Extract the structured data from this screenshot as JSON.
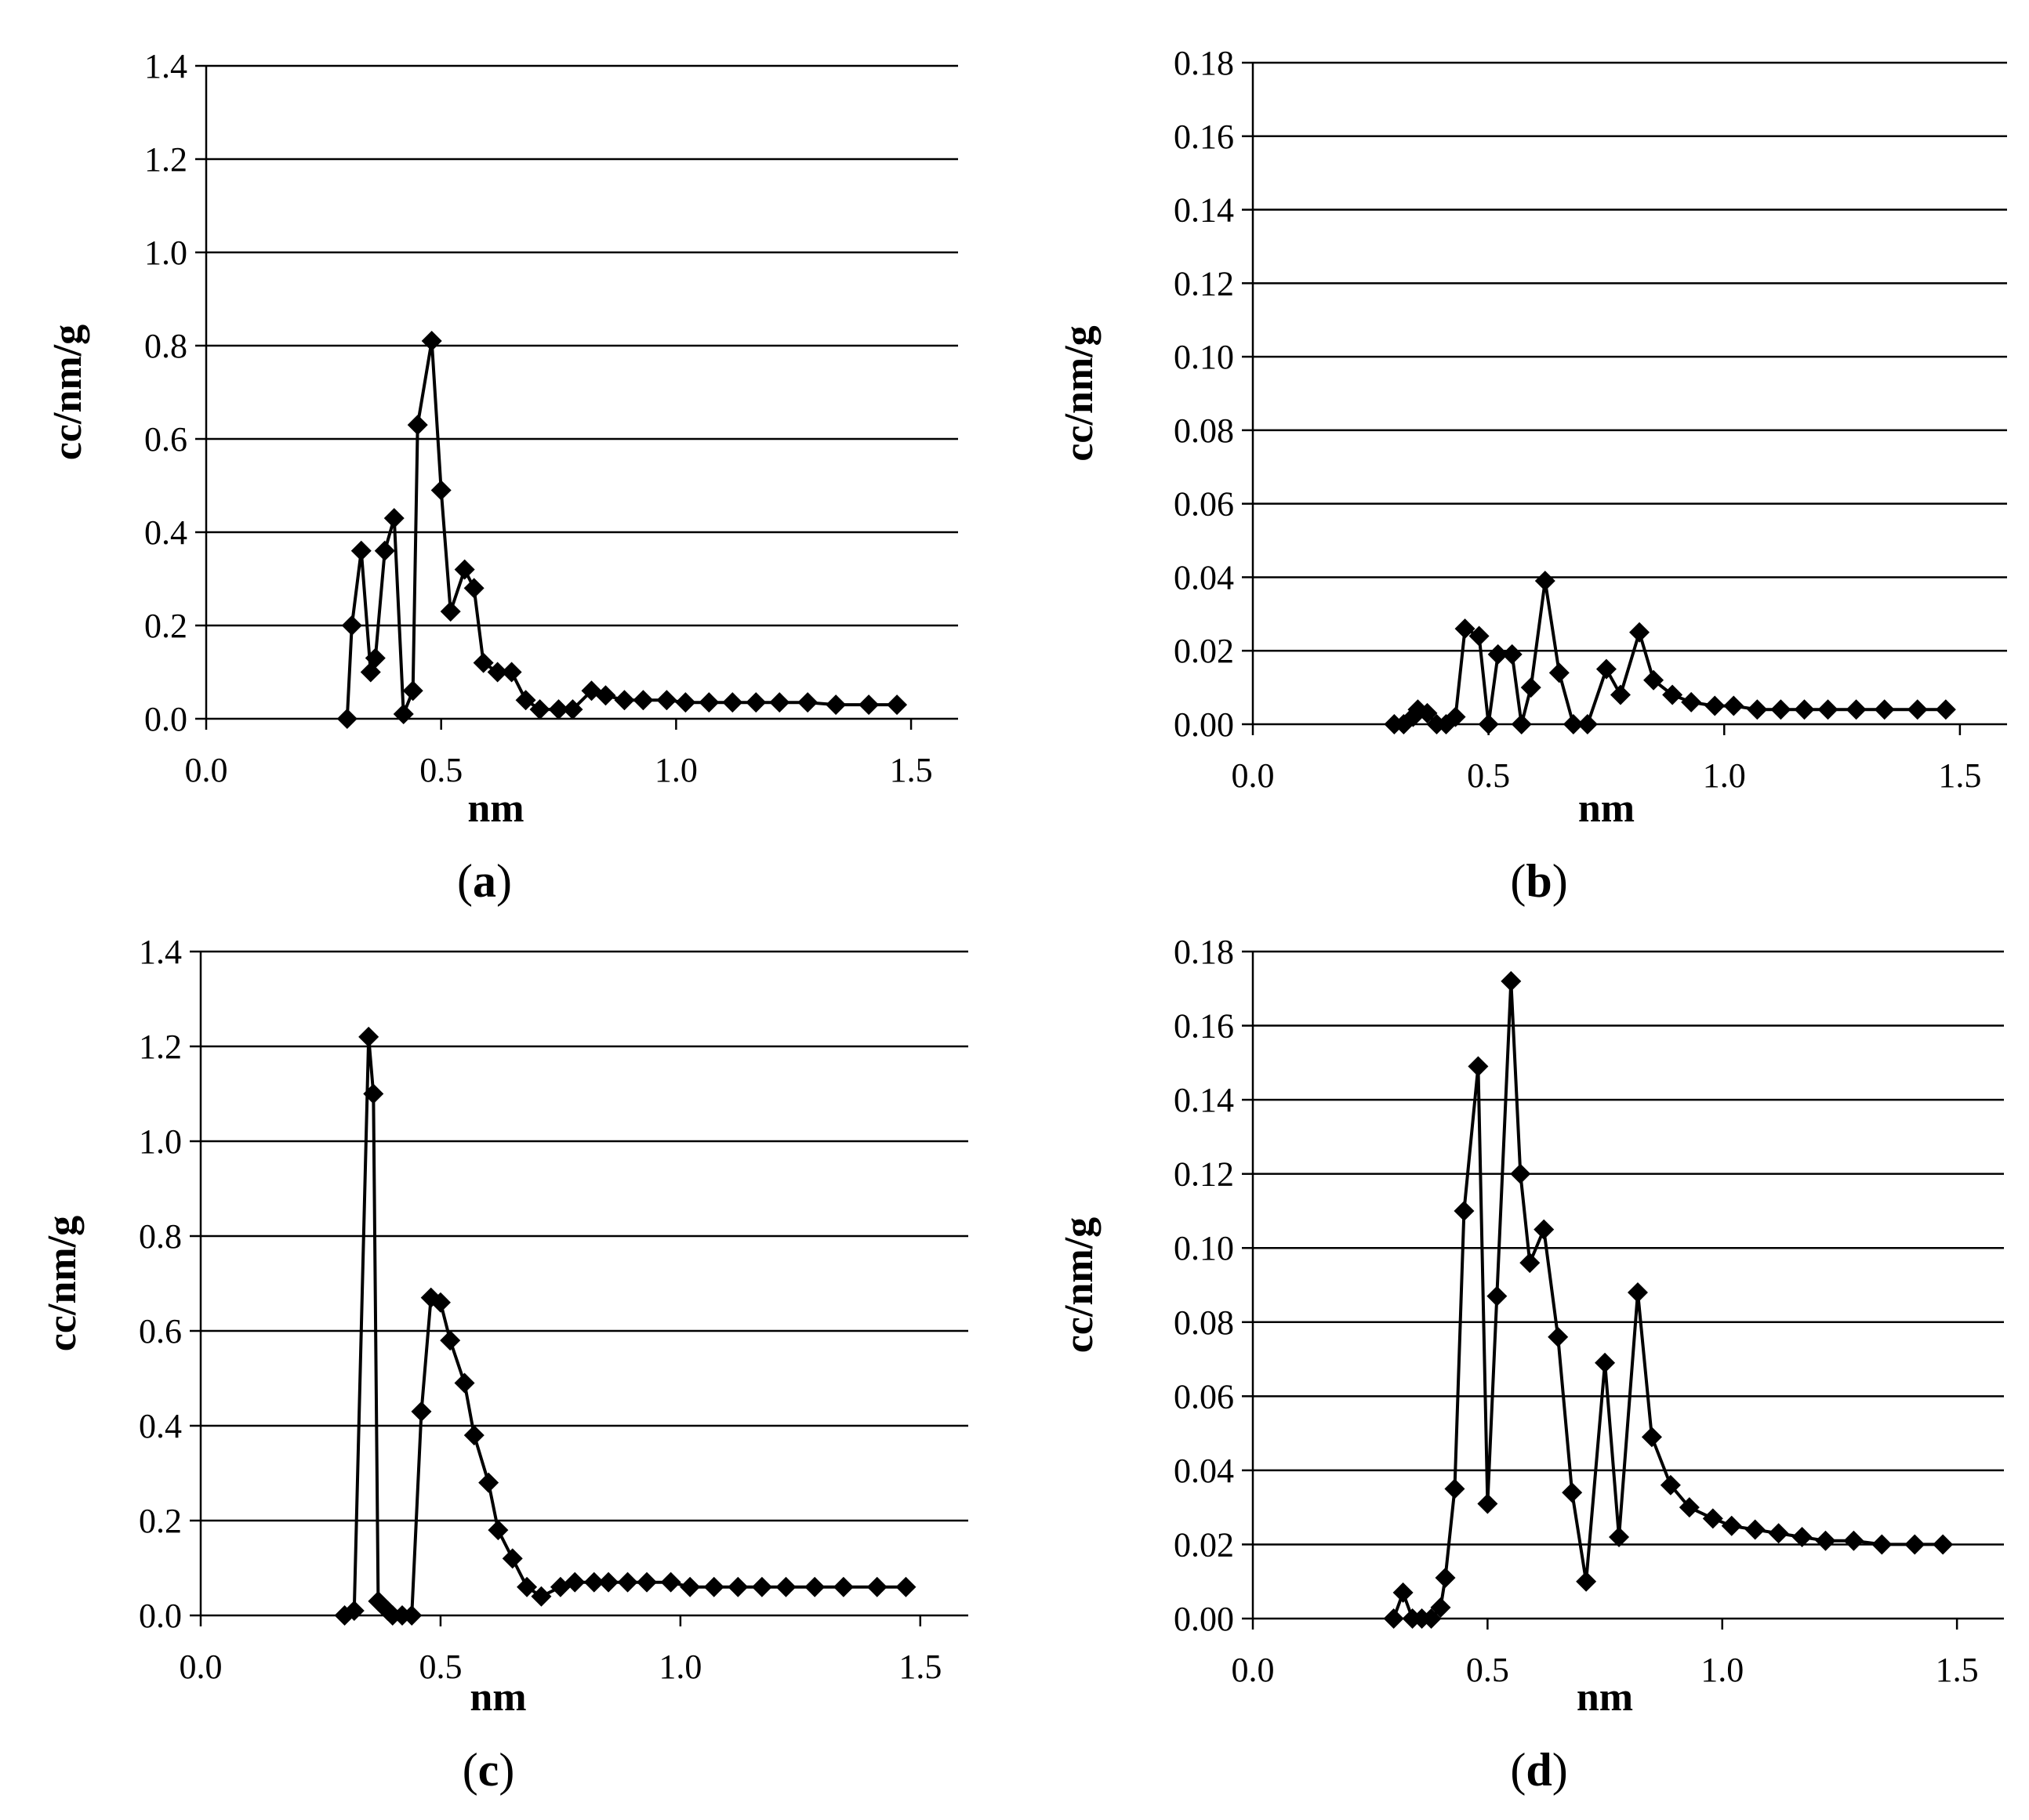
{
  "figure": {
    "panels": [
      "a",
      "b",
      "c",
      "d"
    ]
  },
  "chart_data": [
    {
      "type": "line",
      "panel": "a",
      "caption_open": "(",
      "caption_letter": "a",
      "caption_close": ")",
      "xlabel": "nm",
      "ylabel": "cc/nm/g",
      "xlim": [
        0.0,
        1.6
      ],
      "ylim": [
        0.0,
        1.4
      ],
      "xticks": [
        "0.0",
        "0.5",
        "1.0",
        "1.5"
      ],
      "yticks": [
        "0.0",
        "0.2",
        "0.4",
        "0.6",
        "0.8",
        "1.0",
        "1.2",
        "1.4"
      ],
      "grid": "horizontal",
      "marker": "diamond",
      "series": [
        {
          "name": "",
          "x": [
            0.3,
            0.31,
            0.33,
            0.35,
            0.36,
            0.38,
            0.4,
            0.42,
            0.44,
            0.45,
            0.48,
            0.5,
            0.52,
            0.55,
            0.57,
            0.59,
            0.62,
            0.65,
            0.68,
            0.71,
            0.75,
            0.78,
            0.82,
            0.85,
            0.89,
            0.93,
            0.98,
            1.02,
            1.07,
            1.12,
            1.17,
            1.22,
            1.28,
            1.34,
            1.41,
            1.47
          ],
          "y": [
            0.0,
            0.2,
            0.36,
            0.1,
            0.13,
            0.36,
            0.43,
            0.01,
            0.06,
            0.63,
            0.81,
            0.49,
            0.23,
            0.32,
            0.28,
            0.12,
            0.1,
            0.1,
            0.04,
            0.02,
            0.02,
            0.02,
            0.06,
            0.05,
            0.04,
            0.04,
            0.04,
            0.035,
            0.035,
            0.035,
            0.035,
            0.035,
            0.035,
            0.03,
            0.03,
            0.03
          ]
        }
      ]
    },
    {
      "type": "line",
      "panel": "b",
      "caption_open": "(",
      "caption_letter": "b",
      "caption_close": ")",
      "xlabel": "nm",
      "ylabel": "cc/nm/g",
      "xlim": [
        0.0,
        1.6
      ],
      "ylim": [
        0.0,
        0.18
      ],
      "xticks": [
        "0.0",
        "0.5",
        "1.0",
        "1.5"
      ],
      "yticks": [
        "0.00",
        "0.02",
        "0.04",
        "0.06",
        "0.08",
        "0.10",
        "0.12",
        "0.14",
        "0.16",
        "0.18"
      ],
      "grid": "horizontal",
      "marker": "diamond",
      "series": [
        {
          "name": "",
          "x": [
            0.3,
            0.32,
            0.34,
            0.35,
            0.37,
            0.39,
            0.41,
            0.43,
            0.45,
            0.48,
            0.5,
            0.52,
            0.55,
            0.57,
            0.59,
            0.62,
            0.65,
            0.68,
            0.71,
            0.75,
            0.78,
            0.82,
            0.85,
            0.89,
            0.93,
            0.98,
            1.02,
            1.07,
            1.12,
            1.17,
            1.22,
            1.28,
            1.34,
            1.41,
            1.47
          ],
          "y": [
            0.0,
            0.0,
            0.002,
            0.004,
            0.003,
            0.0,
            0.0,
            0.002,
            0.026,
            0.024,
            0.0,
            0.019,
            0.019,
            0.0,
            0.01,
            0.039,
            0.014,
            0.0,
            0.0,
            0.015,
            0.008,
            0.025,
            0.012,
            0.008,
            0.006,
            0.005,
            0.005,
            0.004,
            0.004,
            0.004,
            0.004,
            0.004,
            0.004,
            0.004,
            0.004
          ]
        }
      ]
    },
    {
      "type": "line",
      "panel": "c",
      "caption_open": "(",
      "caption_letter": "c",
      "caption_close": ")",
      "xlabel": "nm",
      "ylabel": "cc/nm/g",
      "xlim": [
        0.0,
        1.6
      ],
      "ylim": [
        0.0,
        1.4
      ],
      "xticks": [
        "0.0",
        "0.5",
        "1.0",
        "1.5"
      ],
      "yticks": [
        "0.0",
        "0.2",
        "0.4",
        "0.6",
        "0.8",
        "1.0",
        "1.2",
        "1.4"
      ],
      "grid": "horizontal",
      "marker": "diamond",
      "series": [
        {
          "name": "",
          "x": [
            0.3,
            0.32,
            0.35,
            0.36,
            0.37,
            0.39,
            0.4,
            0.42,
            0.44,
            0.46,
            0.48,
            0.5,
            0.52,
            0.55,
            0.57,
            0.6,
            0.62,
            0.65,
            0.68,
            0.71,
            0.75,
            0.78,
            0.82,
            0.85,
            0.89,
            0.93,
            0.98,
            1.02,
            1.07,
            1.12,
            1.17,
            1.22,
            1.28,
            1.34,
            1.41,
            1.47
          ],
          "y": [
            0.0,
            0.01,
            1.22,
            1.1,
            0.03,
            0.01,
            0.0,
            0.0,
            0.0,
            0.43,
            0.67,
            0.66,
            0.58,
            0.49,
            0.38,
            0.28,
            0.18,
            0.12,
            0.06,
            0.04,
            0.06,
            0.07,
            0.07,
            0.07,
            0.07,
            0.07,
            0.07,
            0.06,
            0.06,
            0.06,
            0.06,
            0.06,
            0.06,
            0.06,
            0.06,
            0.06
          ]
        }
      ]
    },
    {
      "type": "line",
      "panel": "d",
      "caption_open": "(",
      "caption_letter": "d",
      "caption_close": ")",
      "xlabel": "nm",
      "ylabel": "cc/nm/g",
      "xlim": [
        0.0,
        1.6
      ],
      "ylim": [
        0.0,
        0.18
      ],
      "xticks": [
        "0.0",
        "0.5",
        "1.0",
        "1.5"
      ],
      "yticks": [
        "0.00",
        "0.02",
        "0.04",
        "0.06",
        "0.08",
        "0.10",
        "0.12",
        "0.14",
        "0.16",
        "0.18"
      ],
      "grid": "horizontal",
      "marker": "diamond",
      "series": [
        {
          "name": "",
          "x": [
            0.3,
            0.32,
            0.34,
            0.36,
            0.38,
            0.4,
            0.41,
            0.43,
            0.45,
            0.48,
            0.5,
            0.52,
            0.55,
            0.57,
            0.59,
            0.62,
            0.65,
            0.68,
            0.71,
            0.75,
            0.78,
            0.82,
            0.85,
            0.89,
            0.93,
            0.98,
            1.02,
            1.07,
            1.12,
            1.17,
            1.22,
            1.28,
            1.34,
            1.41,
            1.47
          ],
          "y": [
            0.0,
            0.007,
            0.0,
            0.0,
            0.0,
            0.003,
            0.011,
            0.035,
            0.11,
            0.149,
            0.031,
            0.087,
            0.172,
            0.12,
            0.096,
            0.105,
            0.076,
            0.034,
            0.01,
            0.069,
            0.022,
            0.088,
            0.049,
            0.036,
            0.03,
            0.027,
            0.025,
            0.024,
            0.023,
            0.022,
            0.021,
            0.021,
            0.02,
            0.02,
            0.02
          ]
        }
      ]
    }
  ]
}
